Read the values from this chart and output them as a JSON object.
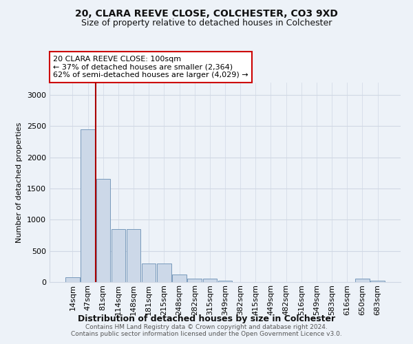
{
  "title1": "20, CLARA REEVE CLOSE, COLCHESTER, CO3 9XD",
  "title2": "Size of property relative to detached houses in Colchester",
  "xlabel": "Distribution of detached houses by size in Colchester",
  "ylabel": "Number of detached properties",
  "categories": [
    "14sqm",
    "47sqm",
    "81sqm",
    "114sqm",
    "148sqm",
    "181sqm",
    "215sqm",
    "248sqm",
    "282sqm",
    "315sqm",
    "349sqm",
    "382sqm",
    "415sqm",
    "449sqm",
    "482sqm",
    "516sqm",
    "549sqm",
    "583sqm",
    "616sqm",
    "650sqm",
    "683sqm"
  ],
  "values": [
    75,
    2450,
    1650,
    850,
    850,
    300,
    300,
    125,
    50,
    50,
    25,
    0,
    0,
    0,
    0,
    0,
    0,
    0,
    0,
    50,
    25
  ],
  "bar_color": "#ccd8e8",
  "bar_edgecolor": "#7799bb",
  "redline_x": 1.5,
  "redline_color": "#aa0000",
  "annotation_text": "20 CLARA REEVE CLOSE: 100sqm\n← 37% of detached houses are smaller (2,364)\n62% of semi-detached houses are larger (4,029) →",
  "annotation_box_color": "#ffffff",
  "annotation_border_color": "#cc0000",
  "ylim": [
    0,
    3200
  ],
  "yticks": [
    0,
    500,
    1000,
    1500,
    2000,
    2500,
    3000
  ],
  "footnote": "Contains HM Land Registry data © Crown copyright and database right 2024.\nContains public sector information licensed under the Open Government Licence v3.0.",
  "background_color": "#edf2f8",
  "grid_color": "#d0d8e4",
  "title1_fontsize": 10,
  "title2_fontsize": 9
}
